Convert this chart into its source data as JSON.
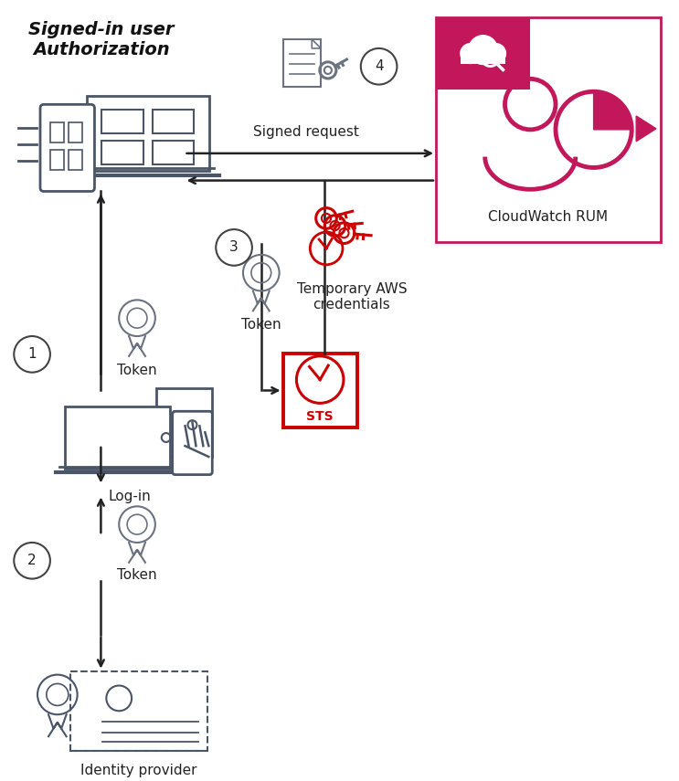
{
  "title": "Signed-in user\nAuthorization",
  "bg": "#ffffff",
  "dark": "#4a5568",
  "pink": "#c2185b",
  "red": "#cc0000",
  "gray": "#6b7280",
  "cw_label": "CloudWatch RUM",
  "signed_req": "Signed request",
  "tok": "Token",
  "login": "Log-in",
  "idp": "Identity provider",
  "sts": "STS",
  "tmp": "Temporary AWS\ncredentials",
  "steps": [
    "1",
    "2",
    "3",
    "4"
  ]
}
